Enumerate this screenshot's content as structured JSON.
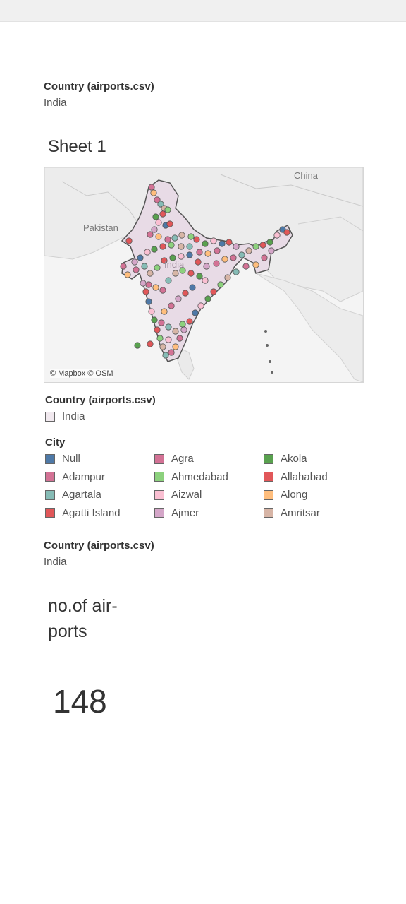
{
  "filter_top": {
    "title": "Country (airports.csv)",
    "value": "India"
  },
  "sheet": {
    "title": "Sheet 1"
  },
  "map": {
    "credit": "© Mapbox © OSM",
    "labels": {
      "china": "China",
      "pakistan": "Pakistan",
      "india": "India"
    },
    "fill_color": "#e8dbe6"
  },
  "country_legend": {
    "title": "Country (airports.csv)",
    "item": "India",
    "swatch_color": "#f1e9ef"
  },
  "city_legend": {
    "title": "City",
    "items": [
      {
        "label": "Null",
        "color": "#4e79a7"
      },
      {
        "label": "Agra",
        "color": "#d37295"
      },
      {
        "label": "Akola",
        "color": "#59a14f"
      },
      {
        "label": "Adampur",
        "color": "#d37295"
      },
      {
        "label": "Ahmedabad",
        "color": "#8cd17d"
      },
      {
        "label": "Allahabad",
        "color": "#e15759"
      },
      {
        "label": "Agartala",
        "color": "#86bcb6"
      },
      {
        "label": "Aizwal",
        "color": "#fabfd2"
      },
      {
        "label": "Along",
        "color": "#ffbe7d"
      },
      {
        "label": "Agatti Island",
        "color": "#e15759"
      },
      {
        "label": "Ajmer",
        "color": "#d4a6c8"
      },
      {
        "label": "Amritsar",
        "color": "#d7b5a6"
      }
    ]
  },
  "filter_bottom": {
    "title": "Country (airports.csv)",
    "value": "India"
  },
  "kpi": {
    "title": "no.of air-ports",
    "value": "148"
  }
}
